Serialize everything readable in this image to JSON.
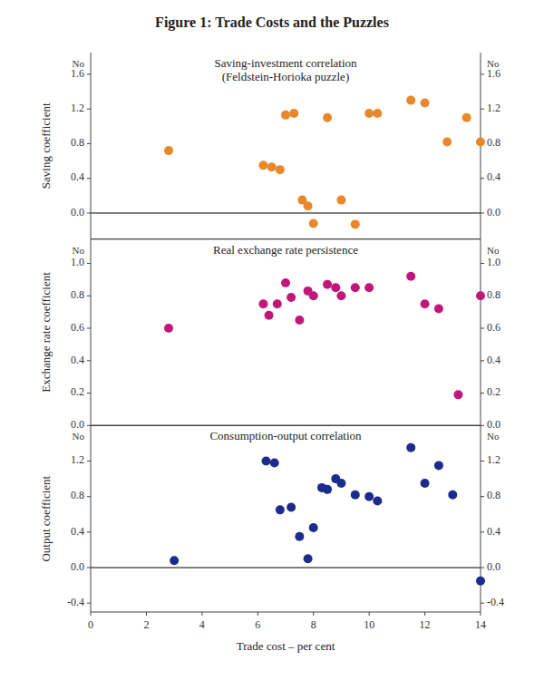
{
  "chart_data": [
    {
      "type": "scatter",
      "title": "Figure 1: Trade Costs and the Puzzles",
      "subtitle": "Saving-investment correlation\n(Feldstein-Horioka puzzle)",
      "ylabel": "Saving coefficient",
      "annotations": [
        "No"
      ],
      "x": [
        2.8,
        6.2,
        6.5,
        6.8,
        7.0,
        7.3,
        7.6,
        7.8,
        8.0,
        8.5,
        9.0,
        9.5,
        10.0,
        10.3,
        11.5,
        12.0,
        12.8,
        13.5,
        14.0
      ],
      "values": [
        0.72,
        0.55,
        0.53,
        0.5,
        1.13,
        1.15,
        0.15,
        0.08,
        -0.12,
        1.1,
        0.15,
        -0.13,
        1.15,
        1.15,
        1.3,
        1.27,
        0.82,
        1.1,
        0.82
      ],
      "color": "#E8882A",
      "xlim": [
        0,
        14
      ],
      "ylim": [
        -0.3,
        1.85
      ],
      "yticks": [
        {
          "value": 0.0,
          "label": "0.0"
        },
        0.4,
        0.8,
        1.2,
        1.6
      ],
      "y2lim": [
        -0.3,
        1.85
      ],
      "y2ticks": [
        {
          "value": 0.0,
          "label": "0.0"
        },
        0.4,
        0.8,
        1.2,
        1.6
      ],
      "grid": false,
      "tick_labels": "y"
    },
    {
      "type": "scatter",
      "subtitle": "Real exchange rate persistence",
      "ylabel": "Exchange rate coefficient",
      "annotations": [
        "No"
      ],
      "x": [
        2.8,
        6.2,
        6.4,
        6.7,
        7.0,
        7.2,
        7.5,
        7.8,
        8.0,
        8.5,
        8.8,
        9.0,
        9.5,
        10.0,
        11.5,
        12.0,
        12.5,
        13.2,
        14.0
      ],
      "values": [
        0.6,
        0.75,
        0.68,
        0.75,
        0.88,
        0.79,
        0.65,
        0.83,
        0.8,
        0.87,
        0.85,
        0.8,
        0.85,
        0.85,
        0.92,
        0.75,
        0.72,
        0.19,
        0.8
      ],
      "color": "#C0187A",
      "xlim": [
        0,
        14
      ],
      "ylim": [
        0.0,
        1.15
      ],
      "yticks": [
        {
          "value": 0.0,
          "label": "0.0"
        },
        0.2,
        0.4,
        0.6,
        0.8,
        {
          "value": 1.0,
          "label": "1.0"
        }
      ],
      "y2lim": [
        0.0,
        1.15
      ],
      "y2ticks": [
        {
          "value": 0.0,
          "label": "0.0"
        },
        0.2,
        0.4,
        0.6,
        0.8,
        {
          "value": 1.0,
          "label": "1.0"
        }
      ],
      "grid": false,
      "tick_labels": "y"
    },
    {
      "type": "scatter",
      "subtitle": "Consumption-output correlation",
      "ylabel": "Output coefficient",
      "xlabel": "Trade cost – per cent",
      "annotations": [
        "No"
      ],
      "x": [
        3.0,
        6.3,
        6.6,
        6.8,
        7.2,
        7.5,
        7.8,
        8.0,
        8.3,
        8.5,
        8.8,
        9.0,
        9.5,
        10.0,
        10.3,
        11.5,
        12.0,
        12.5,
        13.0,
        14.0
      ],
      "values": [
        0.08,
        1.2,
        1.18,
        0.65,
        0.68,
        0.35,
        0.1,
        0.45,
        0.9,
        0.88,
        1.0,
        0.95,
        0.82,
        0.8,
        0.75,
        1.35,
        0.95,
        1.15,
        0.82,
        -0.15
      ],
      "color": "#1C2B8C",
      "xlim": [
        0,
        14
      ],
      "xticks": [
        0,
        2,
        4,
        6,
        8,
        10,
        12,
        14
      ],
      "ylim": [
        -0.5,
        1.6
      ],
      "yticks": [
        -0.4,
        {
          "value": 0.0,
          "label": "0.0"
        },
        0.4,
        0.8,
        1.2
      ],
      "y2lim": [
        -0.5,
        1.6
      ],
      "y2ticks": [
        -0.4,
        {
          "value": 0.0,
          "label": "0.0"
        },
        0.4,
        0.8,
        1.2
      ],
      "grid": false
    }
  ]
}
